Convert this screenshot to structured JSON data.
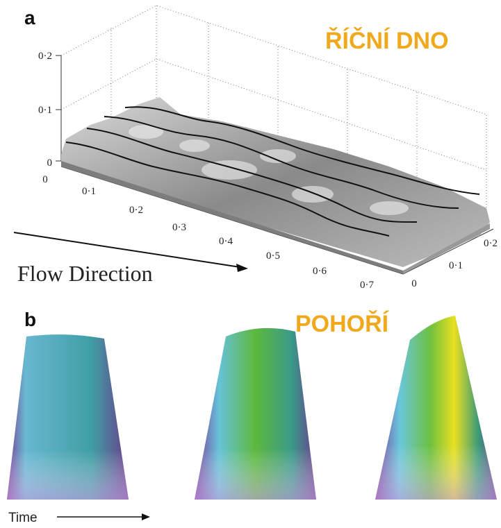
{
  "panel_a": {
    "label": "a",
    "title": "ŘÍČNÍ DNO",
    "z_ticks": [
      "0·2",
      "0·1",
      "0"
    ],
    "x_ticks": [
      "0",
      "0·1",
      "0·2",
      "0·3",
      "0·4",
      "0·5",
      "0·6",
      "0·7"
    ],
    "y_ticks": [
      "0",
      "0·1",
      "0·2"
    ],
    "caption": "Flow Direction"
  },
  "panel_b": {
    "label": "b",
    "title": "POHOŘÍ",
    "caption": "Time"
  }
}
